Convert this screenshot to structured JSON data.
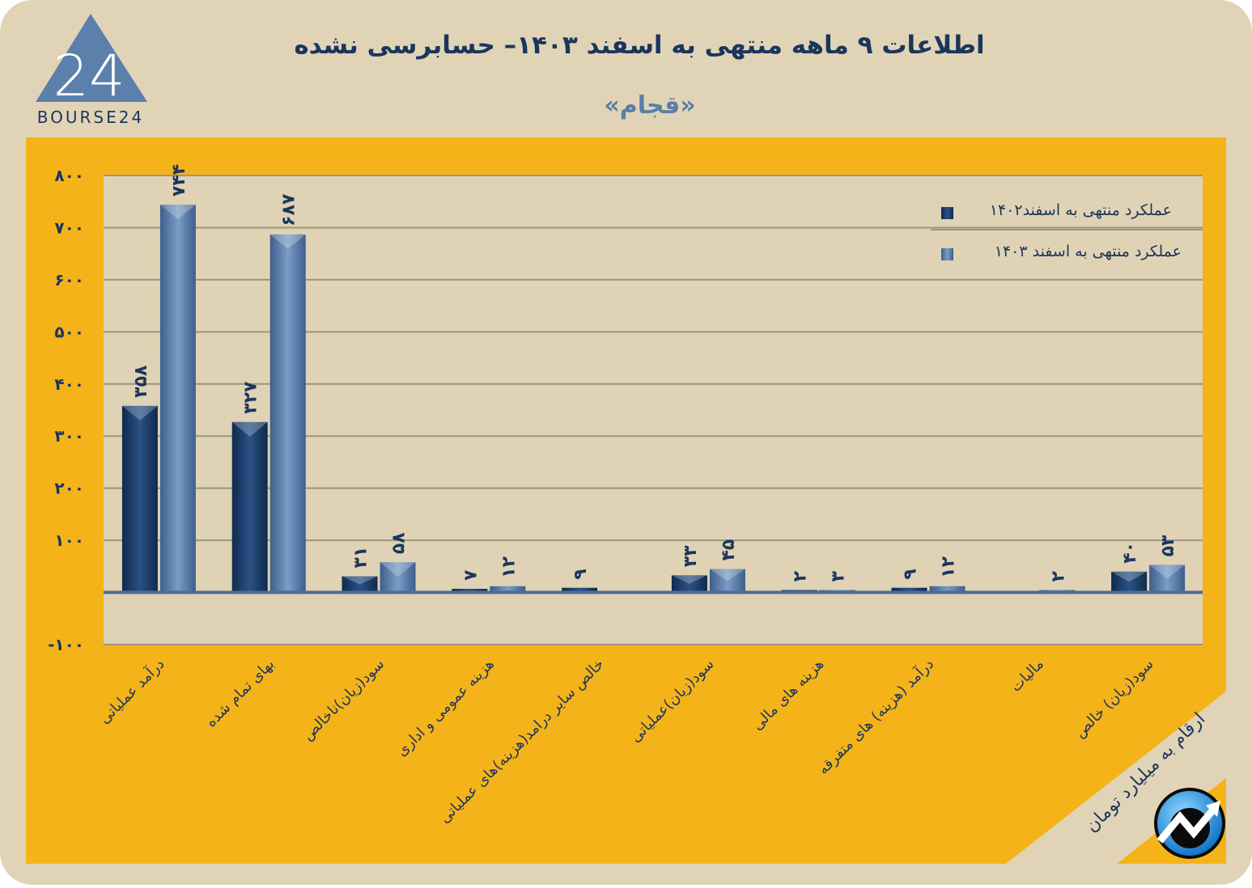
{
  "header": {
    "title": "اطلاعات ۹ ماهه منتهی به اسفند  ۱۴۰۳– حسابرسی نشده",
    "subtitle": "«قجام»",
    "logo_text": "BOURSE24",
    "logo_mark": "24"
  },
  "unit_note": "ارقام به میلیارد تومان",
  "colors": {
    "page_bg": "#e1d4b6",
    "panel": "#f5b31a",
    "plot_bg": "#e0d3b5",
    "series_1402": "#1d3d66",
    "series_1403": "#5a7eaa",
    "text": "#1b365d",
    "subtitle": "#5b7ea8"
  },
  "icons": {
    "brand": "trend-arrow-circle-icon",
    "logo": "triangle-24-logo"
  },
  "chart_data": {
    "type": "bar",
    "title": "اطلاعات ۹ ماهه منتهی به اسفند  ۱۴۰۳– حسابرسی نشده",
    "ylim": [
      -100,
      800
    ],
    "yticks": [
      -100,
      100,
      200,
      300,
      400,
      500,
      600,
      700,
      800
    ],
    "ytick_labels": [
      "-۱۰۰",
      "۱۰۰",
      "۲۰۰",
      "۳۰۰",
      "۴۰۰",
      "۵۰۰",
      "۶۰۰",
      "۷۰۰",
      "۸۰۰"
    ],
    "grid": true,
    "legend_position": "top-right",
    "categories": [
      "درآمد عملیاتی",
      "بهای تمام شده",
      "سود(زیان)ناخالص",
      "هزینه عمومی و اداری",
      "خالص سایر درامد(هزینه)های عملیاتی",
      "سود(زیان)عملیاتی",
      "هزینه های مالی",
      "درآمد (هزینه) های متفرقه",
      "مالیات",
      "سود(زیان) خالص"
    ],
    "series": [
      {
        "name": "عملکرد منتهی به اسفند۱۴۰۲",
        "values": [
          358,
          327,
          31,
          7,
          9,
          33,
          2,
          9,
          null,
          40
        ],
        "labels": [
          "۳۵۸",
          "۳۲۷",
          "۳۱",
          "۷",
          "۹",
          "۳۳",
          "۲",
          "۹",
          "",
          "۴۰"
        ]
      },
      {
        "name": "عملکرد منتهی به اسفند ۱۴۰۳",
        "values": [
          744,
          687,
          58,
          12,
          null,
          45,
          3,
          12,
          2,
          53
        ],
        "labels": [
          "۷۴۴",
          "۶۸۷",
          "۵۸",
          "۱۲",
          "",
          "۴۵",
          "۳",
          "۱۲",
          "۲",
          "۵۳"
        ]
      }
    ]
  }
}
